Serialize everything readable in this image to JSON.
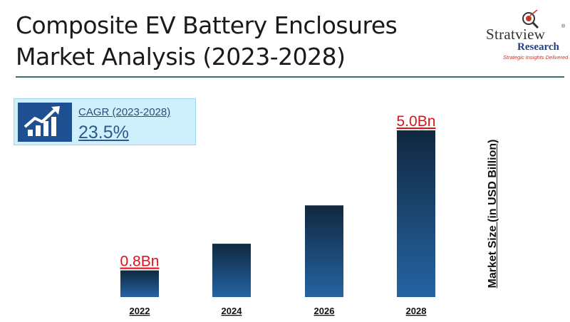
{
  "header": {
    "title": "Composite EV Battery Enclosures Market Analysis (2023-2028)"
  },
  "logo": {
    "brand": "Stratview",
    "registered": "®",
    "research": "Research",
    "tagline": "Strategic Insights Delivered",
    "icon": "magnifier-target-icon"
  },
  "cagr": {
    "label": "CAGR (2023-2028)",
    "value": "23.5%",
    "icon": "growth-chart-icon",
    "icon_bg": "#1d4f91"
  },
  "colors": {
    "bar_top": "#10283f",
    "bar_bottom": "#2564a3",
    "value_label": "#d9141b",
    "rule": "#3d6e70"
  },
  "chart_data": {
    "type": "bar",
    "categories": [
      "2022",
      "2024",
      "2026",
      "2028"
    ],
    "values": [
      0.8,
      1.6,
      2.75,
      5.0
    ],
    "data_labels": [
      "0.8Bn",
      "",
      "",
      "5.0Bn"
    ],
    "title": "",
    "xlabel": "",
    "ylabel": "Market Size (in USD Billion)",
    "ylim": [
      0,
      5.0
    ],
    "grid": false,
    "legend": "none"
  }
}
